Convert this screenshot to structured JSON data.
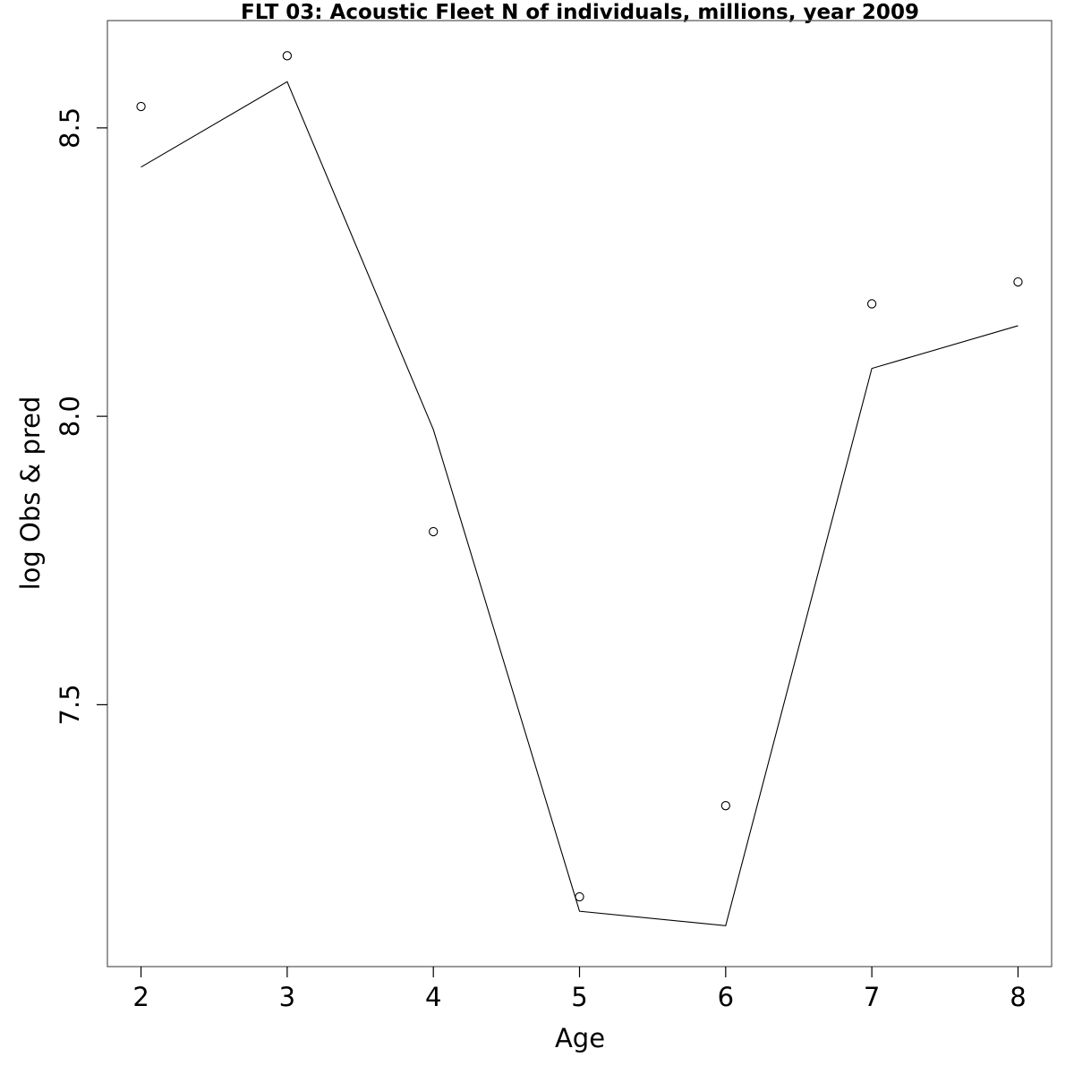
{
  "chart_data": {
    "type": "line",
    "title": "FLT 03: Acoustic Fleet  N of individuals, millions, year 2009",
    "xlabel": "Age",
    "ylabel": "log Obs & pred",
    "xlim": [
      1.77,
      8.23
    ],
    "ylim": [
      7.046,
      8.686
    ],
    "x_ticks": [
      2,
      3,
      4,
      5,
      6,
      7,
      8
    ],
    "y_ticks": [
      7.5,
      8.0,
      8.5
    ],
    "x_tick_labels": [
      "2",
      "3",
      "4",
      "5",
      "6",
      "7",
      "8"
    ],
    "y_tick_labels": [
      "7.5",
      "8.0",
      "8.5"
    ],
    "grid": false,
    "legend": "none",
    "series": [
      {
        "style": "points",
        "marker": "open-circle",
        "color": "#000000",
        "x": [
          2,
          3,
          4,
          5,
          6,
          7,
          8
        ],
        "y": [
          8.537,
          8.625,
          7.8,
          7.167,
          7.325,
          8.195,
          8.233
        ]
      },
      {
        "style": "line",
        "color": "#000000",
        "x": [
          2,
          3,
          4,
          5,
          6,
          7,
          8
        ],
        "y": [
          8.432,
          8.58,
          7.977,
          7.142,
          7.117,
          8.083,
          8.157
        ]
      }
    ]
  }
}
